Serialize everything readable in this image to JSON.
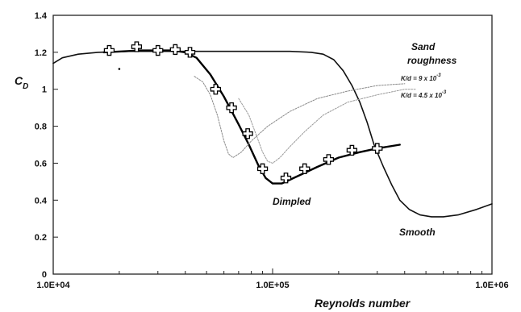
{
  "chart_data": {
    "type": "line",
    "xlabel": "Reynolds number",
    "ylabel": "C",
    "ylabel_sub": "D",
    "xscale": "log",
    "xlim": [
      10000,
      1000000
    ],
    "ylim": [
      0,
      1.4
    ],
    "grid": false,
    "x_tick_labels": [
      "1.0E+04",
      "1.0E+05",
      "1.0E+06"
    ],
    "y_ticks": [
      0,
      0.2,
      0.4,
      0.6,
      0.8,
      1,
      1.2,
      1.4
    ],
    "y_tick_labels": [
      "0",
      "0.2",
      "0.4",
      "0.6",
      "0.8",
      "1",
      "1.2",
      "1.4"
    ],
    "annotations": {
      "sand_line1": "Sand",
      "sand_line2": "roughness",
      "dimpled": "Dimpled",
      "smooth": "Smooth",
      "rough1_base": "K/d = 9 x 10",
      "rough1_exp": "-3",
      "rough2_base": "K/d = 4.5 x 10",
      "rough2_exp": "-3"
    },
    "series": [
      {
        "key": "smooth",
        "points": [
          [
            10000,
            1.14
          ],
          [
            11000,
            1.17
          ],
          [
            13000,
            1.19
          ],
          [
            16000,
            1.2
          ],
          [
            22000,
            1.205
          ],
          [
            40000,
            1.205
          ],
          [
            80000,
            1.205
          ],
          [
            120000,
            1.205
          ],
          [
            150000,
            1.2
          ],
          [
            170000,
            1.19
          ],
          [
            190000,
            1.16
          ],
          [
            210000,
            1.1
          ],
          [
            230000,
            1.02
          ],
          [
            250000,
            0.93
          ],
          [
            270000,
            0.82
          ],
          [
            290000,
            0.7
          ],
          [
            320000,
            0.58
          ],
          [
            350000,
            0.48
          ],
          [
            380000,
            0.4
          ],
          [
            420000,
            0.35
          ],
          [
            470000,
            0.32
          ],
          [
            530000,
            0.31
          ],
          [
            600000,
            0.31
          ],
          [
            700000,
            0.32
          ],
          [
            850000,
            0.35
          ],
          [
            1000000,
            0.38
          ]
        ]
      },
      {
        "key": "dimpled",
        "points": [
          [
            17000,
            1.2
          ],
          [
            25000,
            1.21
          ],
          [
            35000,
            1.21
          ],
          [
            40000,
            1.2
          ],
          [
            45000,
            1.17
          ],
          [
            52000,
            1.08
          ],
          [
            60000,
            0.96
          ],
          [
            70000,
            0.81
          ],
          [
            78000,
            0.7
          ],
          [
            86000,
            0.59
          ],
          [
            93000,
            0.52
          ],
          [
            100000,
            0.49
          ],
          [
            110000,
            0.49
          ],
          [
            130000,
            0.53
          ],
          [
            160000,
            0.58
          ],
          [
            200000,
            0.63
          ],
          [
            250000,
            0.66
          ],
          [
            300000,
            0.68
          ],
          [
            380000,
            0.7
          ]
        ]
      },
      {
        "key": "rough1",
        "points": [
          [
            44000,
            1.07
          ],
          [
            48000,
            1.04
          ],
          [
            52000,
            0.97
          ],
          [
            56000,
            0.86
          ],
          [
            60000,
            0.72
          ],
          [
            63000,
            0.65
          ],
          [
            66000,
            0.63
          ],
          [
            72000,
            0.66
          ],
          [
            80000,
            0.72
          ],
          [
            95000,
            0.8
          ],
          [
            120000,
            0.88
          ],
          [
            160000,
            0.95
          ],
          [
            220000,
            0.99
          ],
          [
            300000,
            1.02
          ],
          [
            400000,
            1.03
          ]
        ]
      },
      {
        "key": "rough2",
        "points": [
          [
            70000,
            0.95
          ],
          [
            78000,
            0.86
          ],
          [
            85000,
            0.74
          ],
          [
            90000,
            0.66
          ],
          [
            95000,
            0.61
          ],
          [
            100000,
            0.6
          ],
          [
            108000,
            0.63
          ],
          [
            120000,
            0.69
          ],
          [
            140000,
            0.77
          ],
          [
            170000,
            0.86
          ],
          [
            220000,
            0.93
          ],
          [
            300000,
            0.97
          ],
          [
            400000,
            1.0
          ],
          [
            450000,
            1.0
          ]
        ]
      }
    ],
    "markers": [
      [
        18000,
        1.21
      ],
      [
        24000,
        1.23
      ],
      [
        30000,
        1.21
      ],
      [
        36000,
        1.215
      ],
      [
        42000,
        1.2
      ],
      [
        55000,
        1.0
      ],
      [
        65000,
        0.9
      ],
      [
        77000,
        0.76
      ],
      [
        90000,
        0.57
      ],
      [
        115000,
        0.52
      ],
      [
        140000,
        0.57
      ],
      [
        180000,
        0.62
      ],
      [
        230000,
        0.67
      ],
      [
        300000,
        0.68
      ]
    ],
    "stray_points": [
      [
        20000,
        1.11
      ]
    ]
  }
}
